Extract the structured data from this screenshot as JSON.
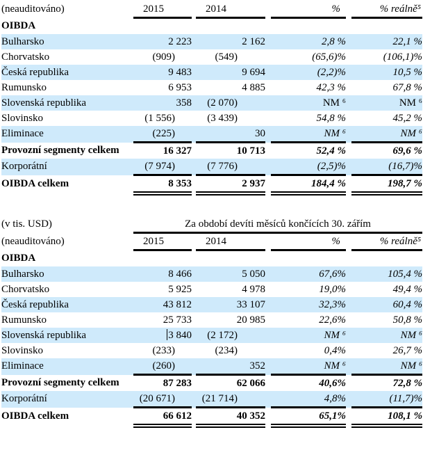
{
  "page": {
    "background": "#ffffff",
    "row_shade_color": "#cfeafb",
    "rule_color": "#000000"
  },
  "tables": [
    {
      "unit_label": "",
      "span_header": "",
      "header": {
        "label": "(neauditováno)",
        "cols": [
          "2015",
          "2014",
          "%",
          "% reálně⁵"
        ]
      },
      "rows": [
        {
          "label": "OIBDA",
          "values": [
            "",
            "",
            "",
            ""
          ],
          "bold": true
        },
        {
          "label": "Bulharsko",
          "values": [
            "2 223",
            "2 162",
            "2,8 %",
            "22,1 %"
          ],
          "shaded": true
        },
        {
          "label": "Chorvatsko",
          "values": [
            "(909)",
            "(549)",
            "(65,6)%",
            "(106,1)%"
          ]
        },
        {
          "label": "Česká republika",
          "values": [
            "9 483",
            "9 694",
            "(2,2)%",
            "10,5 %"
          ],
          "shaded": true
        },
        {
          "label": "Rumunsko",
          "values": [
            "6 953",
            "4 885",
            "42,3 %",
            "67,8 %"
          ]
        },
        {
          "label": "Slovenská republika",
          "values": [
            "358",
            "(2 070)",
            "NM ⁶",
            "NM ⁶"
          ],
          "shaded": true,
          "pct_upright": true
        },
        {
          "label": "Slovinsko",
          "values": [
            "(1 556)",
            "(3 439)",
            "54,8 %",
            "45,2 %"
          ]
        },
        {
          "label": "Eliminace",
          "values": [
            "(225)",
            "30",
            "NM ⁶",
            "NM ⁶"
          ],
          "shaded": true
        },
        {
          "label": "Provozní segmenty celkem",
          "values": [
            "16 327",
            "10 713",
            "52,4 %",
            "69,6 %"
          ],
          "bold": true,
          "line_above": true
        },
        {
          "label": "Korporátní",
          "values": [
            "(7 974)",
            "(7 776)",
            "(2,5)%",
            "(16,7)%"
          ],
          "shaded": true
        },
        {
          "label": "OIBDA celkem",
          "values": [
            "8 353",
            "2 937",
            "184,4 %",
            "198,7 %"
          ],
          "bold": true,
          "line_above": true,
          "double_below": true
        }
      ]
    },
    {
      "unit_label": "(v tis. USD)",
      "span_header": "Za období devíti měsíců končících 30. zářím",
      "header": {
        "label": "(neauditováno)",
        "cols": [
          "2015",
          "2014",
          "%",
          "% reálně⁵"
        ]
      },
      "rows": [
        {
          "label": "OIBDA",
          "values": [
            "",
            "",
            "",
            ""
          ],
          "bold": true
        },
        {
          "label": "Bulharsko",
          "values": [
            "8 466",
            "5 050",
            "67,6%",
            "105,4 %"
          ],
          "shaded": true
        },
        {
          "label": "Chorvatsko",
          "values": [
            "5 925",
            "4 978",
            "19,0%",
            "49,4 %"
          ]
        },
        {
          "label": "Česká republika",
          "values": [
            "43 812",
            "33 107",
            "32,3%",
            "60,4 %"
          ],
          "shaded": true
        },
        {
          "label": "Rumunsko",
          "values": [
            "25 733",
            "20 985",
            "22,6%",
            "50,8 %"
          ]
        },
        {
          "label": "Slovenská republika",
          "values": [
            "3 840",
            "(2 172)",
            "NM ⁶",
            "NM ⁶"
          ],
          "shaded": true,
          "cursor": true
        },
        {
          "label": "Slovinsko",
          "values": [
            "(233)",
            "(234)",
            "0,4%",
            "26,7 %"
          ]
        },
        {
          "label": "Eliminace",
          "values": [
            "(260)",
            "352",
            "NM ⁶",
            "NM ⁶"
          ],
          "shaded": true
        },
        {
          "label": "Provozní segmenty celkem",
          "values": [
            "87 283",
            "62 066",
            "40,6%",
            "72,8 %"
          ],
          "bold": true,
          "line_above": true
        },
        {
          "label": "Korporátní",
          "values": [
            "(20 671)",
            "(21 714)",
            "4,8%",
            "(11,7)%"
          ],
          "shaded": true
        },
        {
          "label": "OIBDA celkem",
          "values": [
            "66 612",
            "40 352",
            "65,1%",
            "108,1 %"
          ],
          "bold": true,
          "line_above": true,
          "double_below": true
        }
      ]
    }
  ]
}
